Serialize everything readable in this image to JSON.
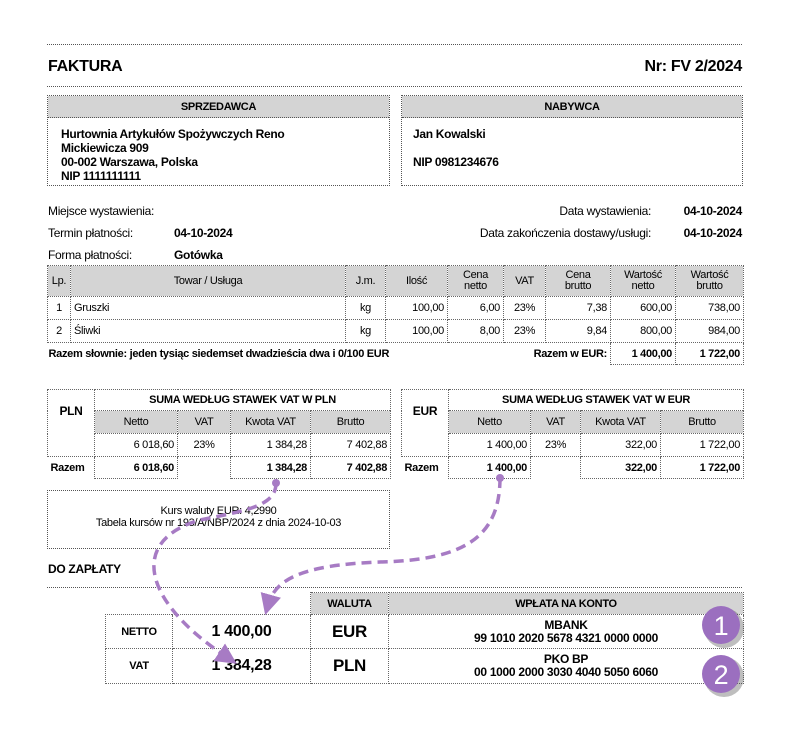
{
  "title": "FAKTURA",
  "number": "Nr: FV 2/2024",
  "seller": {
    "header": "SPRZEDAWCA",
    "lines": [
      "Hurtownia Artykułów Spożywczych Reno",
      "Mickiewicza 909",
      "00-002 Warszawa, Polska",
      "NIP 1111111111"
    ]
  },
  "buyer": {
    "header": "NABYWCA",
    "name": "Jan Kowalski",
    "nip": "NIP 0981234676"
  },
  "meta": {
    "place_label": "Miejsce wystawienia:",
    "due_label": "Termin płatności:",
    "due": "04-10-2024",
    "method_label": "Forma płatności:",
    "method": "Gotówka",
    "issue_label": "Data wystawienia:",
    "issue": "04-10-2024",
    "delivery_label": "Data zakończenia dostawy/usługi:",
    "delivery": "04-10-2024"
  },
  "items": {
    "headers": [
      "Lp.",
      "Towar / Usługa",
      "J.m.",
      "Ilość",
      "Cena netto",
      "VAT",
      "Cena brutto",
      "Wartość netto",
      "Wartość brutto"
    ],
    "rows": [
      [
        "1",
        "Gruszki",
        "kg",
        "100,00",
        "6,00",
        "23%",
        "7,38",
        "600,00",
        "738,00"
      ],
      [
        "2",
        "Śliwki",
        "kg",
        "100,00",
        "8,00",
        "23%",
        "9,84",
        "800,00",
        "984,00"
      ]
    ],
    "words": "Razem słownie: jeden tysiąc siedemset dwadzieścia dwa i 0/100 EUR",
    "total_label": "Razem w EUR:",
    "total_netto": "1 400,00",
    "total_brutto": "1 722,00"
  },
  "pln": {
    "label": "PLN",
    "title": "SUMA WEDŁUG STAWEK VAT W PLN",
    "headers": [
      "Netto",
      "VAT",
      "Kwota VAT",
      "Brutto"
    ],
    "row": [
      "6 018,60",
      "23%",
      "1 384,28",
      "7 402,88"
    ],
    "total_label": "Razem",
    "total": [
      "6 018,60",
      "",
      "1 384,28",
      "7 402,88"
    ]
  },
  "eur": {
    "label": "EUR",
    "title": "SUMA WEDŁUG STAWEK VAT W EUR",
    "headers": [
      "Netto",
      "VAT",
      "Kwota VAT",
      "Brutto"
    ],
    "row": [
      "1 400,00",
      "23%",
      "322,00",
      "1 722,00"
    ],
    "total_label": "Razem",
    "total": [
      "1 400,00",
      "",
      "322,00",
      "1 722,00"
    ]
  },
  "rate": {
    "line1": "Kurs waluty EUR: 4,2990",
    "line2": "Tabela kursów nr 193/A/NBP/2024 z dnia 2024-10-03"
  },
  "payment": {
    "title": "DO ZAPŁATY",
    "currency_header": "WALUTA",
    "account_header": "WPŁATA NA KONTO",
    "rows": [
      {
        "label": "NETTO",
        "amount": "1 400,00",
        "currency": "EUR",
        "bank": "MBANK",
        "account": "99 1010 2020 5678 4321 0000 0000",
        "badge": "1"
      },
      {
        "label": "VAT",
        "amount": "1 384,28",
        "currency": "PLN",
        "bank": "PKO BP",
        "account": "00 1000 2000 3030 4040 5050 6060",
        "badge": "2"
      }
    ]
  },
  "colors": {
    "header_gray": "#d4d4d4",
    "arrow": "#a77bc4",
    "badge": "#9b6fbf"
  }
}
